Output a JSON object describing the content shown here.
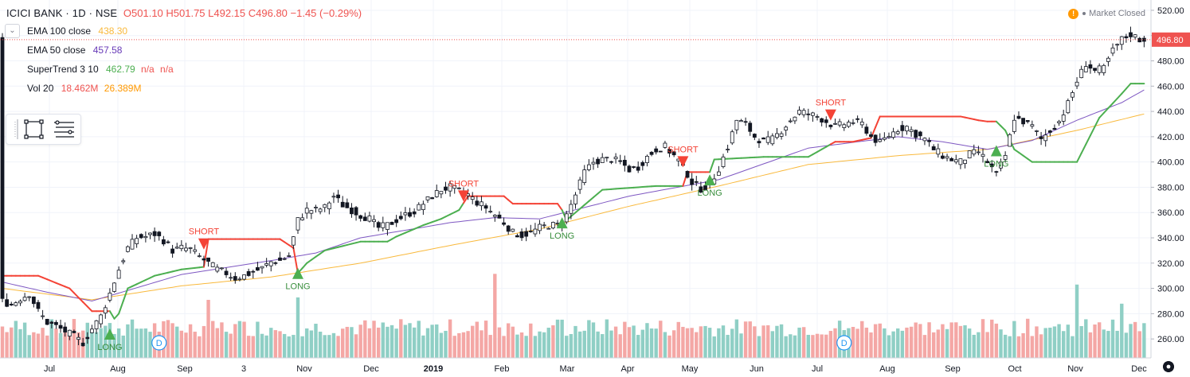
{
  "header": {
    "symbol": "ICICI BANK · 1D · NSE",
    "ohlc": "O501.10  H501.75  L492.15  C496.80  −1.45 (−0.29%)"
  },
  "status": {
    "icon": "exclamation-icon",
    "label": "Market Closed"
  },
  "indicators": [
    {
      "name": "EMA 100 close",
      "values": [
        "438.30"
      ],
      "colors": [
        "#f9b93c"
      ]
    },
    {
      "name": "EMA 50 close",
      "values": [
        "457.58"
      ],
      "colors": [
        "#673ab7"
      ]
    },
    {
      "name": "SuperTrend 3 10",
      "values": [
        "462.79",
        "n/a",
        "n/a"
      ],
      "colors": [
        "#4caf50",
        "#ef5350",
        "#ef5350"
      ]
    },
    {
      "name": "Vol 20",
      "values": [
        "18.462M",
        "26.389M"
      ],
      "colors": [
        "#ef5350",
        "#ff9800"
      ]
    }
  ],
  "toolbar": {
    "icons": [
      "rectangle-icon",
      "text-lines-icon"
    ]
  },
  "colors": {
    "up": "#26a69a",
    "down": "#ef5350",
    "st_up": "#4caf50",
    "st_down": "#f44336",
    "ema100": "#f9b93c",
    "ema50": "#7e57c2",
    "vol_up": "#8fcfc5",
    "vol_down": "#f4a7a5"
  },
  "chart_data": {
    "type": "candlestick",
    "x_ticks": [
      "Jul",
      "Aug",
      "Sep",
      "3",
      "Nov",
      "Dec",
      "2019",
      "Feb",
      "Mar",
      "Apr",
      "May",
      "Jun",
      "Jul",
      "Aug",
      "Sep",
      "Oct",
      "Nov",
      "Dec"
    ],
    "y_ticks": [
      260,
      280,
      300,
      320,
      340,
      360,
      380,
      400,
      420,
      440,
      460,
      480,
      500,
      520
    ],
    "ylim": [
      245,
      525
    ],
    "last_price": "496.80",
    "price_path": [
      [
        0,
        290
      ],
      [
        2,
        287
      ],
      [
        4,
        292
      ],
      [
        6,
        296
      ],
      [
        8,
        282
      ],
      [
        10,
        273
      ],
      [
        12,
        270
      ],
      [
        14,
        266
      ],
      [
        16,
        262
      ],
      [
        18,
        257
      ],
      [
        20,
        268
      ],
      [
        22,
        278
      ],
      [
        24,
        296
      ],
      [
        26,
        315
      ],
      [
        28,
        332
      ],
      [
        30,
        340
      ],
      [
        32,
        341
      ],
      [
        34,
        343
      ],
      [
        36,
        338
      ],
      [
        38,
        330
      ],
      [
        40,
        332
      ],
      [
        42,
        331
      ],
      [
        44,
        325
      ],
      [
        46,
        320
      ],
      [
        48,
        315
      ],
      [
        50,
        312
      ],
      [
        52,
        308
      ],
      [
        54,
        310
      ],
      [
        56,
        313
      ],
      [
        58,
        316
      ],
      [
        60,
        321
      ],
      [
        62,
        322
      ],
      [
        64,
        326
      ],
      [
        66,
        354
      ],
      [
        68,
        362
      ],
      [
        70,
        362
      ],
      [
        72,
        364
      ],
      [
        74,
        373
      ],
      [
        76,
        366
      ],
      [
        78,
        362
      ],
      [
        80,
        358
      ],
      [
        82,
        355
      ],
      [
        84,
        348
      ],
      [
        86,
        350
      ],
      [
        88,
        354
      ],
      [
        90,
        358
      ],
      [
        92,
        361
      ],
      [
        94,
        367
      ],
      [
        96,
        373
      ],
      [
        98,
        378
      ],
      [
        100,
        380
      ],
      [
        102,
        377
      ],
      [
        104,
        374
      ],
      [
        106,
        368
      ],
      [
        108,
        364
      ],
      [
        110,
        358
      ],
      [
        112,
        352
      ],
      [
        114,
        344
      ],
      [
        116,
        342
      ],
      [
        118,
        344
      ],
      [
        120,
        348
      ],
      [
        122,
        350
      ],
      [
        124,
        350
      ],
      [
        126,
        358
      ],
      [
        128,
        374
      ],
      [
        130,
        392
      ],
      [
        132,
        400
      ],
      [
        134,
        402
      ],
      [
        136,
        402
      ],
      [
        138,
        400
      ],
      [
        140,
        394
      ],
      [
        142,
        396
      ],
      [
        144,
        404
      ],
      [
        146,
        410
      ],
      [
        148,
        412
      ],
      [
        150,
        405
      ],
      [
        152,
        397
      ],
      [
        154,
        384
      ],
      [
        156,
        379
      ],
      [
        158,
        382
      ],
      [
        160,
        395
      ],
      [
        162,
        412
      ],
      [
        164,
        433
      ],
      [
        166,
        430
      ],
      [
        168,
        420
      ],
      [
        170,
        416
      ],
      [
        172,
        418
      ],
      [
        174,
        425
      ],
      [
        176,
        433
      ],
      [
        178,
        440
      ],
      [
        180,
        438
      ],
      [
        182,
        436
      ],
      [
        184,
        432
      ],
      [
        186,
        428
      ],
      [
        188,
        430
      ],
      [
        190,
        432
      ],
      [
        192,
        430
      ],
      [
        194,
        420
      ],
      [
        196,
        415
      ],
      [
        198,
        421
      ],
      [
        200,
        426
      ],
      [
        202,
        428
      ],
      [
        204,
        422
      ],
      [
        206,
        418
      ],
      [
        208,
        410
      ],
      [
        210,
        405
      ],
      [
        212,
        402
      ],
      [
        214,
        400
      ],
      [
        216,
        406
      ],
      [
        218,
        408
      ],
      [
        220,
        400
      ],
      [
        222,
        390
      ],
      [
        224,
        405
      ],
      [
        226,
        435
      ],
      [
        228,
        432
      ],
      [
        230,
        428
      ],
      [
        232,
        418
      ],
      [
        234,
        425
      ],
      [
        236,
        432
      ],
      [
        238,
        446
      ],
      [
        240,
        464
      ],
      [
        242,
        478
      ],
      [
        244,
        472
      ],
      [
        246,
        474
      ],
      [
        248,
        488
      ],
      [
        250,
        497
      ],
      [
        252,
        501
      ],
      [
        254,
        497
      ],
      [
        255,
        497
      ]
    ],
    "series": [
      {
        "name": "EMA 100 close",
        "values": [
          [
            0,
            300
          ],
          [
            20,
            291
          ],
          [
            40,
            302
          ],
          [
            60,
            309
          ],
          [
            80,
            320
          ],
          [
            100,
            334
          ],
          [
            120,
            347
          ],
          [
            140,
            365
          ],
          [
            160,
            381
          ],
          [
            180,
            398
          ],
          [
            200,
            405
          ],
          [
            220,
            410
          ],
          [
            240,
            425
          ],
          [
            255,
            438
          ]
        ]
      },
      {
        "name": "EMA 50 close",
        "values": [
          [
            0,
            305
          ],
          [
            10,
            297
          ],
          [
            20,
            290
          ],
          [
            40,
            311
          ],
          [
            60,
            322
          ],
          [
            70,
            328
          ],
          [
            80,
            340
          ],
          [
            100,
            352
          ],
          [
            110,
            356
          ],
          [
            120,
            355
          ],
          [
            140,
            373
          ],
          [
            160,
            386
          ],
          [
            180,
            411
          ],
          [
            200,
            420
          ],
          [
            210,
            416
          ],
          [
            220,
            410
          ],
          [
            230,
            417
          ],
          [
            240,
            433
          ],
          [
            250,
            447
          ],
          [
            255,
            457
          ]
        ]
      },
      {
        "name": "SuperTrend 3 10",
        "values": [
          [
            0,
            310
          ],
          [
            8,
            310
          ],
          [
            15,
            300
          ],
          [
            20,
            282
          ],
          [
            24,
            282
          ],
          [
            25,
            276
          ],
          [
            26,
            280
          ],
          [
            28,
            300
          ],
          [
            34,
            310
          ],
          [
            40,
            315
          ],
          [
            45,
            317
          ],
          [
            46,
            339
          ],
          [
            62,
            339
          ],
          [
            65,
            332
          ],
          [
            66,
            312
          ],
          [
            68,
            320
          ],
          [
            72,
            330
          ],
          [
            80,
            337
          ],
          [
            86,
            337
          ],
          [
            88,
            341
          ],
          [
            94,
            350
          ],
          [
            98,
            355
          ],
          [
            102,
            362
          ],
          [
            104,
            373
          ],
          [
            112,
            373
          ],
          [
            114,
            367
          ],
          [
            124,
            367
          ],
          [
            125,
            362
          ],
          [
            126,
            354
          ],
          [
            130,
            366
          ],
          [
            134,
            378
          ],
          [
            146,
            381
          ],
          [
            152,
            381
          ],
          [
            153,
            392
          ],
          [
            158,
            392
          ],
          [
            159,
            402
          ],
          [
            170,
            404
          ],
          [
            180,
            404
          ],
          [
            186,
            416
          ],
          [
            190,
            416
          ],
          [
            194,
            419
          ],
          [
            196,
            436
          ],
          [
            214,
            436
          ],
          [
            218,
            433
          ],
          [
            220,
            432
          ],
          [
            222,
            432
          ],
          [
            224,
            425
          ],
          [
            226,
            410
          ],
          [
            230,
            400
          ],
          [
            240,
            400
          ],
          [
            245,
            435
          ],
          [
            250,
            454
          ],
          [
            252,
            462
          ],
          [
            255,
            462
          ]
        ]
      },
      {
        "name": "Vol 20",
        "values": [
          [
            20,
            265
          ],
          [
            46,
            285
          ],
          [
            66,
            290
          ],
          [
            110,
            310
          ],
          [
            126,
            262
          ],
          [
            190,
            268
          ],
          [
            240,
            300
          ],
          [
            250,
            282
          ]
        ]
      }
    ],
    "annotations": [
      {
        "label": "LONG",
        "x": 24,
        "price": 262
      },
      {
        "label": "SHORT",
        "x": 45,
        "price": 332
      },
      {
        "label": "LONG",
        "x": 66,
        "price": 310
      },
      {
        "label": "SHORT",
        "x": 103,
        "price": 370
      },
      {
        "label": "LONG",
        "x": 125,
        "price": 350
      },
      {
        "label": "SHORT",
        "x": 152,
        "price": 397
      },
      {
        "label": "LONG",
        "x": 158,
        "price": 384
      },
      {
        "label": "SHORT",
        "x": 185,
        "price": 434
      },
      {
        "label": "LONG",
        "x": 222,
        "price": 407
      }
    ],
    "dividend_markers": [
      {
        "label": "D",
        "x": 35
      },
      {
        "label": "D",
        "x": 188
      }
    ]
  }
}
